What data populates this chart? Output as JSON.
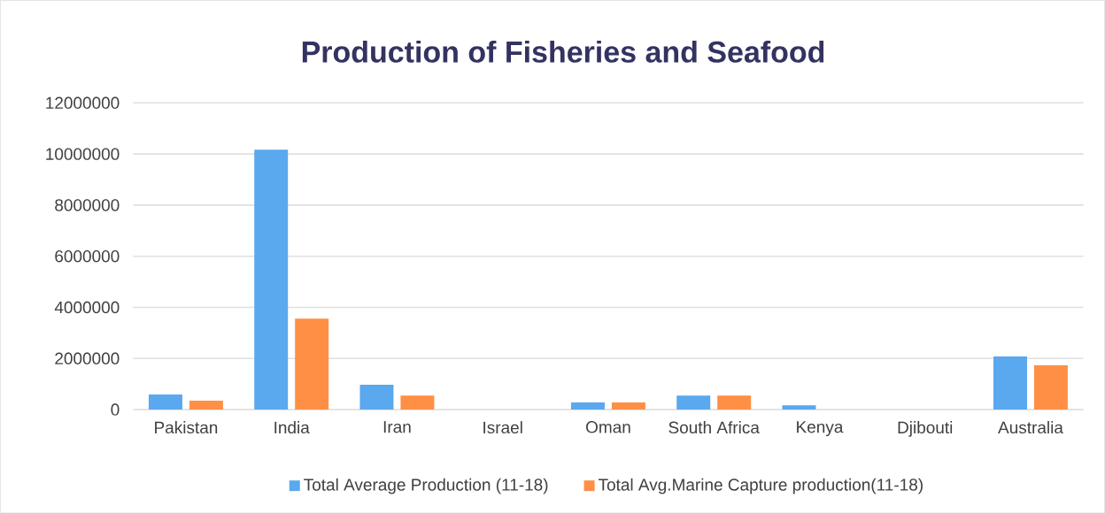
{
  "chart_data": {
    "type": "bar",
    "title": "Production of Fisheries and Seafood",
    "categories": [
      "Pakistan",
      "India",
      "Iran",
      "Israel",
      "Oman",
      "South Africa",
      "Kenya",
      "Djibouti",
      "Australia"
    ],
    "series": [
      {
        "name": "Total Average Production (11-18)",
        "color": "#5aa8ee",
        "values": [
          590000,
          10170000,
          970000,
          0,
          280000,
          550000,
          170000,
          0,
          2080000
        ]
      },
      {
        "name": "Total Avg.Marine Capture production(11-18)",
        "color": "#ff8f45",
        "values": [
          350000,
          3560000,
          550000,
          0,
          280000,
          550000,
          0,
          0,
          1730000
        ]
      }
    ],
    "ylim": [
      0,
      12000000
    ],
    "yticks": [
      0,
      2000000,
      4000000,
      6000000,
      8000000,
      10000000,
      12000000
    ],
    "grid": "y",
    "legend": "bottom"
  }
}
